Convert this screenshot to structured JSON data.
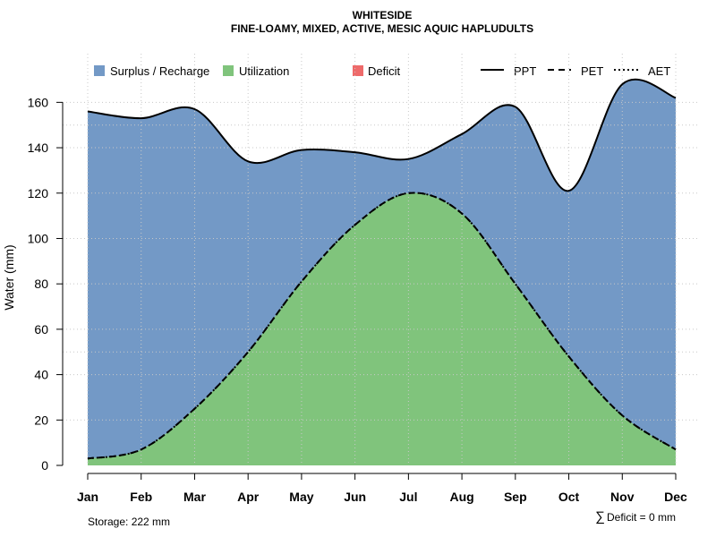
{
  "chart_data": {
    "type": "area",
    "title": "WHITESIDE",
    "subtitle": "FINE-LOAMY, MIXED, ACTIVE, MESIC AQUIC HAPLUDULTS",
    "ylabel": "Water (mm)",
    "xlabel": "",
    "ylim": [
      0,
      170
    ],
    "yticks": [
      0,
      20,
      40,
      60,
      80,
      100,
      120,
      140,
      160
    ],
    "categories": [
      "Jan",
      "Feb",
      "Mar",
      "Apr",
      "May",
      "Jun",
      "Jul",
      "Aug",
      "Sep",
      "Oct",
      "Nov",
      "Dec"
    ],
    "series": [
      {
        "name": "PPT",
        "style": "solid",
        "values": [
          156,
          153,
          157,
          134,
          139,
          138,
          135,
          146,
          158,
          121,
          168,
          162
        ]
      },
      {
        "name": "PET",
        "style": "dashed",
        "values": [
          3,
          7,
          25,
          50,
          81,
          106,
          120,
          111,
          80,
          48,
          22,
          7
        ]
      },
      {
        "name": "AET",
        "style": "dotted",
        "values": [
          3,
          7,
          25,
          50,
          81,
          106,
          120,
          111,
          80,
          48,
          22,
          7
        ]
      }
    ],
    "legend": {
      "areas": [
        {
          "label": "Surplus / Recharge",
          "color": "#7399c6"
        },
        {
          "label": "Utilization",
          "color": "#80c47c"
        },
        {
          "label": "Deficit",
          "color": "#ee6a6a"
        }
      ],
      "lines": [
        {
          "label": "PPT",
          "style": "solid"
        },
        {
          "label": "PET",
          "style": "dashed"
        },
        {
          "label": "AET",
          "style": "dotted"
        }
      ],
      "placement": "top"
    },
    "grid": true,
    "footer": {
      "storage": "Storage: 222 mm",
      "deficit_symbol": "∑",
      "deficit": "Deficit = 0 mm"
    }
  }
}
